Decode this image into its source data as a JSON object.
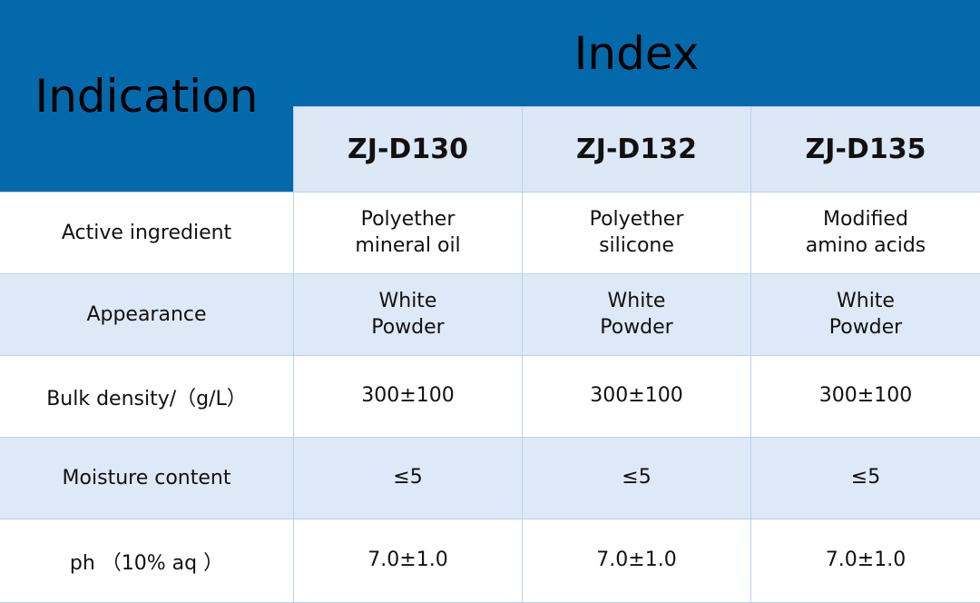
{
  "table": {
    "header": "Indication",
    "group_header": "Index",
    "columns": [
      "ZJ-D130",
      "ZJ-D132",
      "ZJ-D135"
    ],
    "rows": [
      [
        "Active ingredient",
        "Polyether mineral oil",
        "Polyether silicone",
        "Modified amino acids"
      ],
      [
        "Appearance",
        "White Powder",
        "White Powder",
        "White Powder"
      ],
      [
        "Bulk density/（g/L）",
        "300±100",
        "300±100",
        "300±100"
      ],
      [
        "Moisture content",
        "≤5",
        "≤5",
        "≤5"
      ],
      [
        "ph （10% aq ）",
        "7.0±1.0",
        "7.0±1.0",
        "7.0±1.0"
      ]
    ]
  }
}
